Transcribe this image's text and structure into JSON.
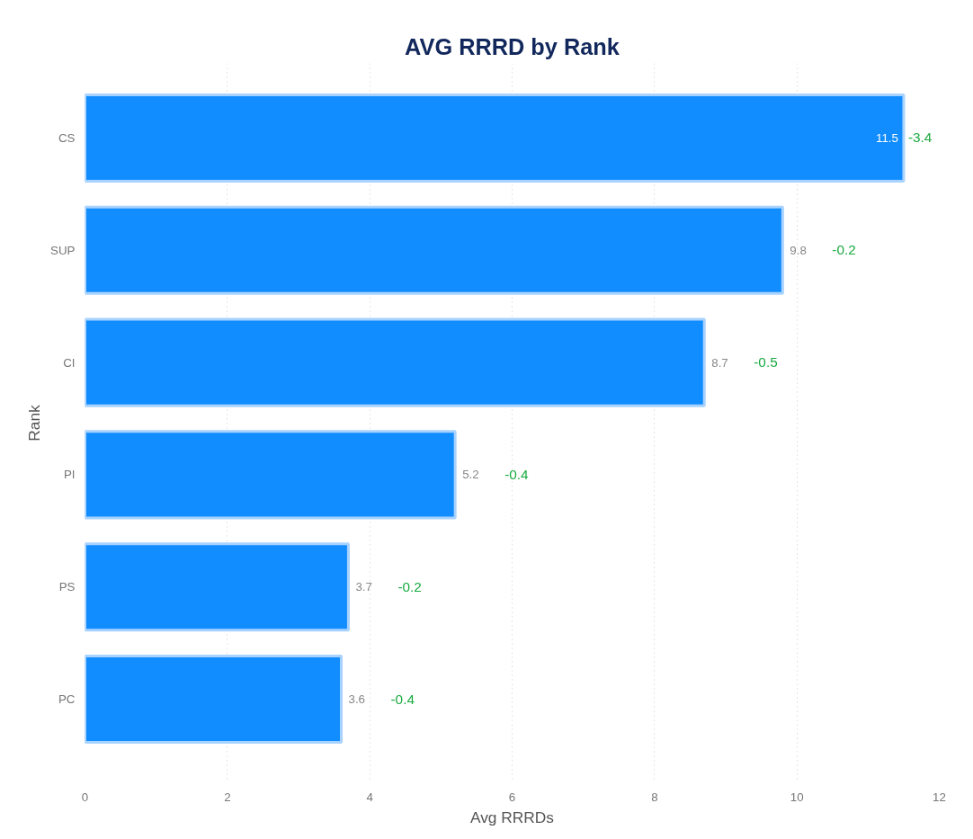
{
  "chart_data": {
    "type": "bar",
    "orientation": "horizontal",
    "title": "AVG RRRD by Rank",
    "xlabel": "Avg RRRDs",
    "ylabel": "Rank",
    "categories": [
      "CS",
      "SUP",
      "CI",
      "PI",
      "PS",
      "PC"
    ],
    "values": [
      11.5,
      9.8,
      8.7,
      5.2,
      3.7,
      3.6
    ],
    "color": "#118dff",
    "data_labels": true,
    "xlim": [
      0,
      12
    ],
    "xticks": [
      0,
      2,
      4,
      6,
      8,
      10,
      12
    ],
    "grid": "x",
    "annotations": [
      "-3.4",
      "-0.2",
      "-0.5",
      "-0.4",
      "-0.2",
      "-0.4"
    ]
  }
}
